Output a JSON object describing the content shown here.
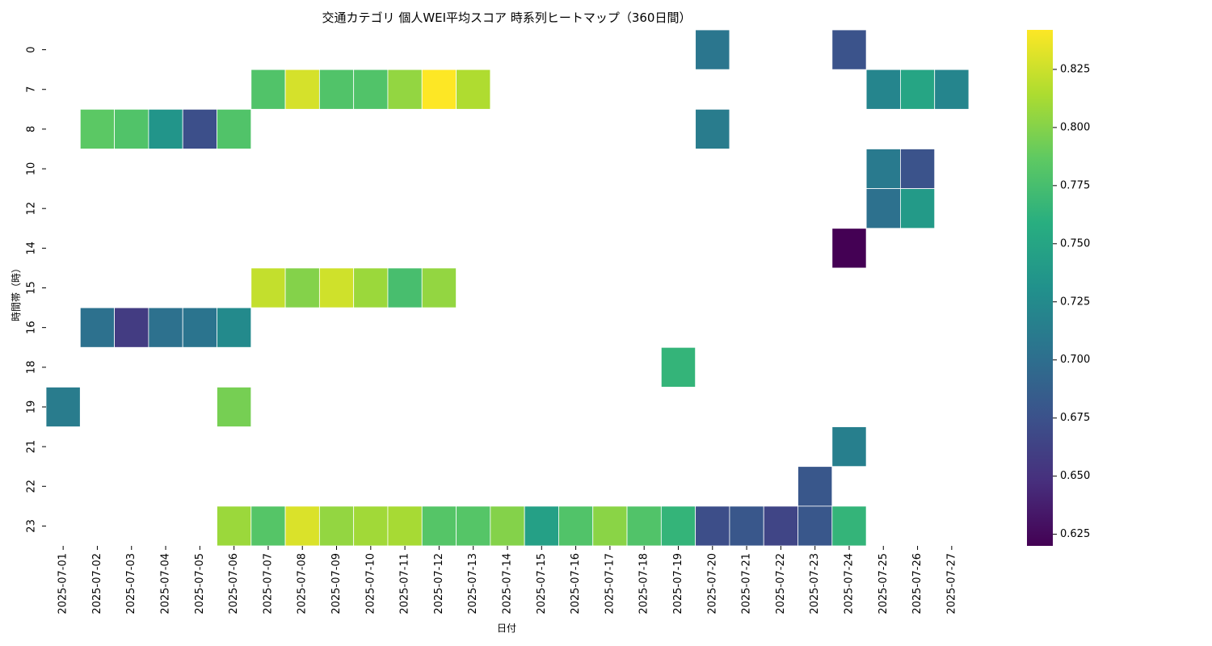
{
  "chart_data": {
    "type": "heatmap",
    "title": "交通カテゴリ 個人WEI平均スコア 時系列ヒートマップ（360日間）",
    "xlabel": "日付",
    "ylabel": "時間帯（時）",
    "x": [
      "2025-07-01",
      "2025-07-02",
      "2025-07-03",
      "2025-07-04",
      "2025-07-05",
      "2025-07-06",
      "2025-07-07",
      "2025-07-08",
      "2025-07-09",
      "2025-07-10",
      "2025-07-11",
      "2025-07-12",
      "2025-07-13",
      "2025-07-14",
      "2025-07-15",
      "2025-07-16",
      "2025-07-17",
      "2025-07-18",
      "2025-07-19",
      "2025-07-20",
      "2025-07-21",
      "2025-07-22",
      "2025-07-23",
      "2025-07-24",
      "2025-07-25",
      "2025-07-26",
      "2025-07-27"
    ],
    "y": [
      "0",
      "7",
      "8",
      "10",
      "12",
      "14",
      "15",
      "16",
      "18",
      "19",
      "21",
      "22",
      "23"
    ],
    "cells": [
      {
        "x": "2025-07-20",
        "y": "0",
        "value": 0.707
      },
      {
        "x": "2025-07-24",
        "y": "0",
        "value": 0.676
      },
      {
        "x": "2025-07-07",
        "y": "7",
        "value": 0.78
      },
      {
        "x": "2025-07-08",
        "y": "7",
        "value": 0.828
      },
      {
        "x": "2025-07-09",
        "y": "7",
        "value": 0.78
      },
      {
        "x": "2025-07-10",
        "y": "7",
        "value": 0.78
      },
      {
        "x": "2025-07-11",
        "y": "7",
        "value": 0.805
      },
      {
        "x": "2025-07-12",
        "y": "7",
        "value": 0.842
      },
      {
        "x": "2025-07-13",
        "y": "7",
        "value": 0.815
      },
      {
        "x": "2025-07-25",
        "y": "7",
        "value": 0.72
      },
      {
        "x": "2025-07-26",
        "y": "7",
        "value": 0.75
      },
      {
        "x": "2025-07-27",
        "y": "7",
        "value": 0.72
      },
      {
        "x": "2025-07-02",
        "y": "8",
        "value": 0.785
      },
      {
        "x": "2025-07-03",
        "y": "8",
        "value": 0.78
      },
      {
        "x": "2025-07-04",
        "y": "8",
        "value": 0.735
      },
      {
        "x": "2025-07-05",
        "y": "8",
        "value": 0.673
      },
      {
        "x": "2025-07-06",
        "y": "8",
        "value": 0.78
      },
      {
        "x": "2025-07-20",
        "y": "8",
        "value": 0.712
      },
      {
        "x": "2025-07-25",
        "y": "10",
        "value": 0.71
      },
      {
        "x": "2025-07-26",
        "y": "10",
        "value": 0.676
      },
      {
        "x": "2025-07-25",
        "y": "12",
        "value": 0.702
      },
      {
        "x": "2025-07-26",
        "y": "12",
        "value": 0.74
      },
      {
        "x": "2025-07-24",
        "y": "14",
        "value": 0.62
      },
      {
        "x": "2025-07-07",
        "y": "15",
        "value": 0.822
      },
      {
        "x": "2025-07-08",
        "y": "15",
        "value": 0.8
      },
      {
        "x": "2025-07-09",
        "y": "15",
        "value": 0.826
      },
      {
        "x": "2025-07-10",
        "y": "15",
        "value": 0.808
      },
      {
        "x": "2025-07-11",
        "y": "15",
        "value": 0.775
      },
      {
        "x": "2025-07-12",
        "y": "15",
        "value": 0.805
      },
      {
        "x": "2025-07-02",
        "y": "16",
        "value": 0.702
      },
      {
        "x": "2025-07-03",
        "y": "16",
        "value": 0.658
      },
      {
        "x": "2025-07-04",
        "y": "16",
        "value": 0.702
      },
      {
        "x": "2025-07-05",
        "y": "16",
        "value": 0.705
      },
      {
        "x": "2025-07-06",
        "y": "16",
        "value": 0.725
      },
      {
        "x": "2025-07-19",
        "y": "18",
        "value": 0.765
      },
      {
        "x": "2025-07-01",
        "y": "19",
        "value": 0.712
      },
      {
        "x": "2025-07-06",
        "y": "19",
        "value": 0.795
      },
      {
        "x": "2025-07-24",
        "y": "21",
        "value": 0.715
      },
      {
        "x": "2025-07-23",
        "y": "22",
        "value": 0.68
      },
      {
        "x": "2025-07-06",
        "y": "23",
        "value": 0.808
      },
      {
        "x": "2025-07-07",
        "y": "23",
        "value": 0.782
      },
      {
        "x": "2025-07-08",
        "y": "23",
        "value": 0.83
      },
      {
        "x": "2025-07-09",
        "y": "23",
        "value": 0.805
      },
      {
        "x": "2025-07-10",
        "y": "23",
        "value": 0.81
      },
      {
        "x": "2025-07-11",
        "y": "23",
        "value": 0.812
      },
      {
        "x": "2025-07-12",
        "y": "23",
        "value": 0.782
      },
      {
        "x": "2025-07-13",
        "y": "23",
        "value": 0.782
      },
      {
        "x": "2025-07-14",
        "y": "23",
        "value": 0.8
      },
      {
        "x": "2025-07-15",
        "y": "23",
        "value": 0.745
      },
      {
        "x": "2025-07-16",
        "y": "23",
        "value": 0.78
      },
      {
        "x": "2025-07-17",
        "y": "23",
        "value": 0.802
      },
      {
        "x": "2025-07-18",
        "y": "23",
        "value": 0.78
      },
      {
        "x": "2025-07-19",
        "y": "23",
        "value": 0.765
      },
      {
        "x": "2025-07-20",
        "y": "23",
        "value": 0.672
      },
      {
        "x": "2025-07-21",
        "y": "23",
        "value": 0.68
      },
      {
        "x": "2025-07-22",
        "y": "23",
        "value": 0.665
      },
      {
        "x": "2025-07-23",
        "y": "23",
        "value": 0.68
      },
      {
        "x": "2025-07-24",
        "y": "23",
        "value": 0.765
      }
    ],
    "colorbar": {
      "colormap": "viridis",
      "vmin": 0.62,
      "vmax": 0.842,
      "ticks": [
        0.625,
        0.65,
        0.675,
        0.7,
        0.725,
        0.75,
        0.775,
        0.8,
        0.825
      ],
      "tick_labels": [
        "0.625",
        "0.650",
        "0.675",
        "0.700",
        "0.725",
        "0.750",
        "0.775",
        "0.800",
        "0.825"
      ]
    },
    "grid": false,
    "legend": "colorbar-right"
  }
}
